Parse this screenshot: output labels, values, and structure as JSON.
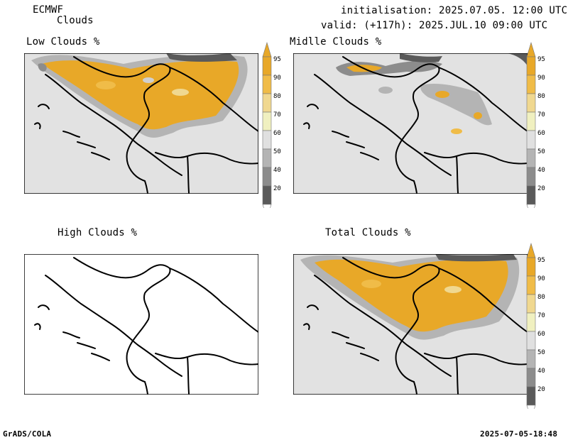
{
  "header": {
    "model": "ECMWF",
    "product": "Clouds",
    "init": "initialisation: 2025.07.05. 12:00 UTC",
    "valid": "valid: (+117h): 2025.JUL.10 09:00 UTC"
  },
  "panels": {
    "low": {
      "title": "Low Clouds %"
    },
    "middle": {
      "title": "Midlle Clouds %"
    },
    "high": {
      "title": "High Clouds %"
    },
    "total": {
      "title": "Total Clouds %"
    }
  },
  "colorbar": {
    "levels": [
      "95",
      "90",
      "80",
      "70",
      "60",
      "50",
      "40",
      "20"
    ],
    "colors": [
      "#e8a828",
      "#f0bc48",
      "#f0d890",
      "#f0f0c0",
      "#e0e0e0",
      "#b4b4b4",
      "#8c8c8c",
      "#5a5a5a"
    ]
  },
  "footer": {
    "left": "GrADS/COLA",
    "right": "2025-07-05-18:48"
  }
}
